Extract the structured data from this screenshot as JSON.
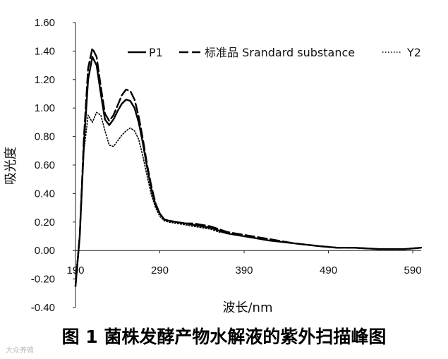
{
  "chart_data": {
    "type": "line",
    "xlabel": "波长/nm",
    "ylabel": "吸光度",
    "xlim": [
      190,
      600
    ],
    "ylim": [
      -0.4,
      1.6
    ],
    "xticks": [
      "190",
      "290",
      "390",
      "490",
      "590"
    ],
    "yticks": [
      "1.60",
      "1.40",
      "1.20",
      "1.00",
      "0.80",
      "0.60",
      "0.40",
      "0.20",
      "0.00",
      "-0.20",
      "-0.40"
    ],
    "grid": false,
    "legend_position": "top",
    "series": [
      {
        "name": "P1",
        "style": "solid",
        "color": "#000000",
        "x": [
          190,
          195,
          200,
          205,
          210,
          215,
          220,
          225,
          230,
          235,
          240,
          245,
          250,
          255,
          260,
          265,
          270,
          275,
          280,
          285,
          290,
          295,
          300,
          310,
          320,
          330,
          340,
          350,
          360,
          370,
          380,
          390,
          400,
          420,
          450,
          480,
          500,
          520,
          550,
          580,
          600
        ],
        "y": [
          -0.25,
          0.1,
          0.75,
          1.2,
          1.36,
          1.3,
          1.1,
          0.92,
          0.88,
          0.92,
          0.98,
          1.03,
          1.06,
          1.05,
          1.0,
          0.9,
          0.75,
          0.58,
          0.43,
          0.32,
          0.26,
          0.22,
          0.21,
          0.2,
          0.19,
          0.18,
          0.17,
          0.16,
          0.14,
          0.12,
          0.11,
          0.1,
          0.09,
          0.07,
          0.05,
          0.03,
          0.02,
          0.02,
          0.01,
          0.01,
          0.02
        ]
      },
      {
        "name": "标准品 Srandard substance",
        "style": "dashed",
        "color": "#000000",
        "x": [
          190,
          195,
          200,
          205,
          210,
          215,
          220,
          225,
          230,
          235,
          240,
          245,
          250,
          255,
          260,
          265,
          270,
          275,
          280,
          285,
          290,
          295,
          300,
          310,
          320,
          330,
          340,
          350,
          360,
          370,
          380,
          390,
          400,
          420,
          450,
          480,
          500,
          520,
          550,
          580,
          600
        ],
        "y": [
          -0.25,
          0.1,
          0.8,
          1.28,
          1.42,
          1.36,
          1.15,
          0.96,
          0.91,
          0.95,
          1.02,
          1.09,
          1.13,
          1.12,
          1.06,
          0.94,
          0.78,
          0.6,
          0.45,
          0.33,
          0.26,
          0.22,
          0.21,
          0.2,
          0.19,
          0.19,
          0.18,
          0.17,
          0.15,
          0.13,
          0.12,
          0.11,
          0.1,
          0.08,
          0.05,
          0.03,
          0.02,
          0.02,
          0.01,
          0.01,
          0.02
        ]
      },
      {
        "name": "Y2",
        "style": "dotted",
        "color": "#000000",
        "x": [
          190,
          195,
          200,
          205,
          210,
          215,
          220,
          225,
          230,
          235,
          240,
          245,
          250,
          255,
          260,
          265,
          270,
          275,
          280,
          285,
          290,
          295,
          300,
          310,
          320,
          330,
          340,
          350,
          360,
          370,
          380,
          390,
          400,
          420,
          450,
          480,
          500,
          520,
          550,
          580,
          600
        ],
        "y": [
          -0.2,
          0.1,
          0.7,
          0.95,
          0.9,
          0.97,
          0.95,
          0.84,
          0.74,
          0.73,
          0.77,
          0.81,
          0.84,
          0.86,
          0.84,
          0.78,
          0.66,
          0.52,
          0.39,
          0.3,
          0.24,
          0.21,
          0.2,
          0.19,
          0.18,
          0.17,
          0.16,
          0.15,
          0.13,
          0.12,
          0.11,
          0.1,
          0.09,
          0.07,
          0.05,
          0.03,
          0.02,
          0.02,
          0.01,
          0.01,
          0.02
        ]
      }
    ]
  },
  "caption": "图 1   菌株发酵产物水解液的紫外扫描峰图",
  "watermark": "大众养殖"
}
